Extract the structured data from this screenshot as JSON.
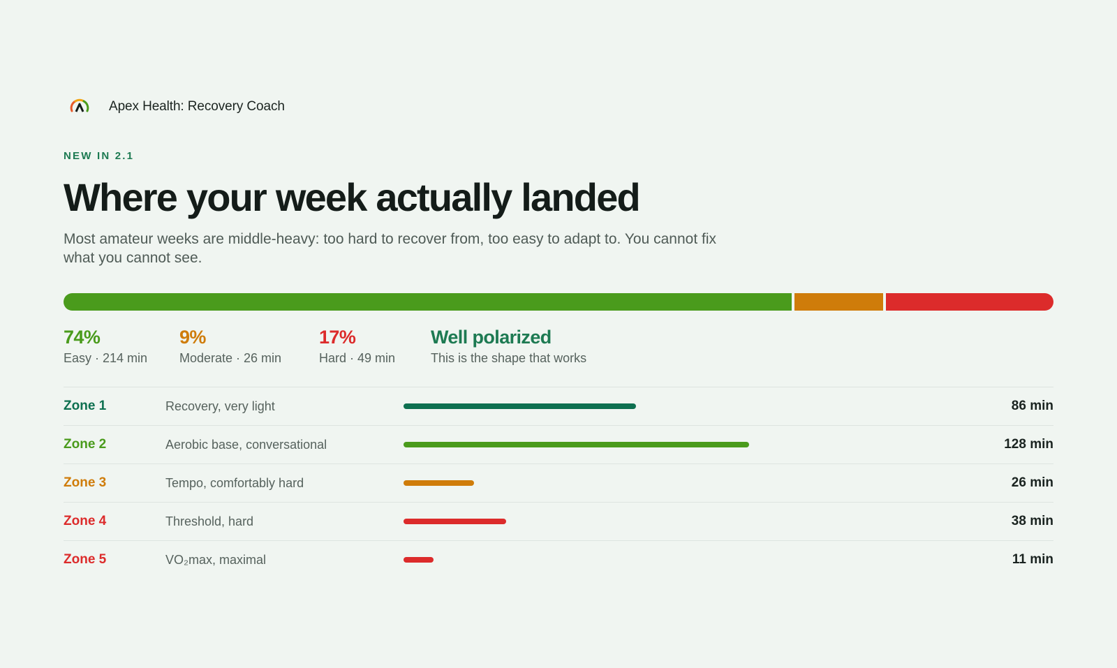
{
  "app": {
    "name": "Apex Health: Recovery Coach",
    "logo_icon": "apex-arc-logo-icon"
  },
  "eyebrow": "NEW IN 2.1",
  "title": "Where your week actually landed",
  "subtitle": "Most amateur weeks are middle-heavy: too hard to recover from, too easy to adapt to. You cannot fix what you cannot see.",
  "colors": {
    "easy": "#4a9b1c",
    "moderate": "#cf7c0a",
    "hard": "#dc2b2b",
    "accent": "#1d7a52",
    "zone1": "#0e7050"
  },
  "summary": {
    "easy": {
      "pct": "74%",
      "label": "Easy · 214 min",
      "share": 74
    },
    "moderate": {
      "pct": "9%",
      "label": "Moderate · 26 min",
      "share": 9
    },
    "hard": {
      "pct": "17%",
      "label": "Hard · 49 min",
      "share": 17
    },
    "verdict": {
      "title": "Well polarized",
      "label": "This is the shape that works"
    }
  },
  "chart_data": {
    "type": "bar",
    "categories": [
      "Zone 1",
      "Zone 2",
      "Zone 3",
      "Zone 4",
      "Zone 5"
    ],
    "values": [
      86,
      128,
      26,
      38,
      11
    ],
    "unit": "min"
  },
  "zones": [
    {
      "name": "Zone 1",
      "desc": "Recovery, very light",
      "minutes": 86,
      "value": "86 min",
      "color": "#0e7050"
    },
    {
      "name": "Zone 2",
      "desc": "Aerobic base, conversational",
      "minutes": 128,
      "value": "128 min",
      "color": "#4a9b1c"
    },
    {
      "name": "Zone 3",
      "desc": "Tempo, comfortably hard",
      "minutes": 26,
      "value": "26 min",
      "color": "#cf7c0a"
    },
    {
      "name": "Zone 4",
      "desc": "Threshold, hard",
      "minutes": 38,
      "value": "38 min",
      "color": "#dc2b2b"
    },
    {
      "name": "Zone 5",
      "desc": "VO₂max, maximal",
      "minutes": 11,
      "value": "11 min",
      "color": "#dc2b2b"
    }
  ]
}
